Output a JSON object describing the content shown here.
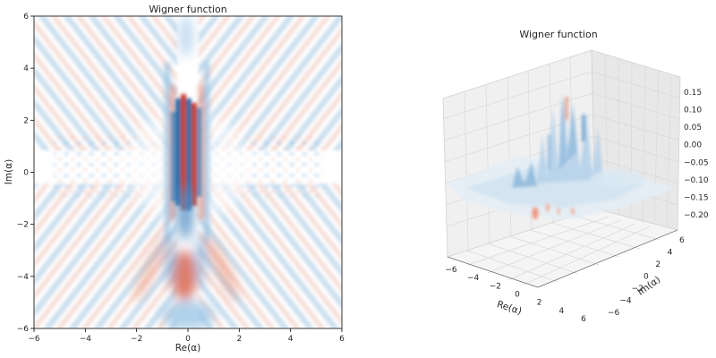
{
  "chart_data": [
    {
      "type": "heatmap",
      "title": "Wigner function",
      "xlabel": "Re(α)",
      "ylabel": "Im(α)",
      "xlim": [
        -6,
        6
      ],
      "ylim": [
        -6,
        6
      ],
      "x_ticks": [
        "−6",
        "−4",
        "−2",
        "0",
        "2",
        "4",
        "6"
      ],
      "y_ticks": [
        "6",
        "4",
        "2",
        "0",
        "−2",
        "−4",
        "−6"
      ],
      "colormap": "RdBu",
      "colors": {
        "positive": "#c0392b",
        "negative": "#2c6fa8",
        "zero": "#ffffff"
      },
      "features": [
        {
          "kind": "central vertical fringes",
          "x": 0,
          "y_range": [
            -1,
            3
          ],
          "value_sign": "alternating"
        },
        {
          "kind": "blob",
          "x": -0.2,
          "y": -4.2,
          "value_sign": "positive"
        },
        {
          "kind": "blob",
          "x": 0,
          "y": -5.6,
          "value_sign": "negative"
        },
        {
          "kind": "diagonal fringes",
          "region": "outer",
          "value_sign": "alternating"
        }
      ],
      "grid": false
    },
    {
      "type": "surface3d",
      "title": "Wigner function",
      "xlabel": "Re(α)",
      "ylabel": "Im(α)",
      "xlim": [
        -6,
        6
      ],
      "ylim": [
        -6,
        6
      ],
      "zlim": [
        -0.2,
        0.15
      ],
      "x_ticks": [
        "−6",
        "−4",
        "−2",
        "0",
        "2",
        "4",
        "6"
      ],
      "y_ticks": [
        "−6",
        "−4",
        "−2",
        "0",
        "2",
        "4",
        "6"
      ],
      "z_ticks": [
        "0.15",
        "0.10",
        "0.05",
        "0.00",
        "−0.05",
        "−0.10",
        "−0.15",
        "−0.20"
      ],
      "colormap": "RdBu",
      "grid": true
    }
  ]
}
